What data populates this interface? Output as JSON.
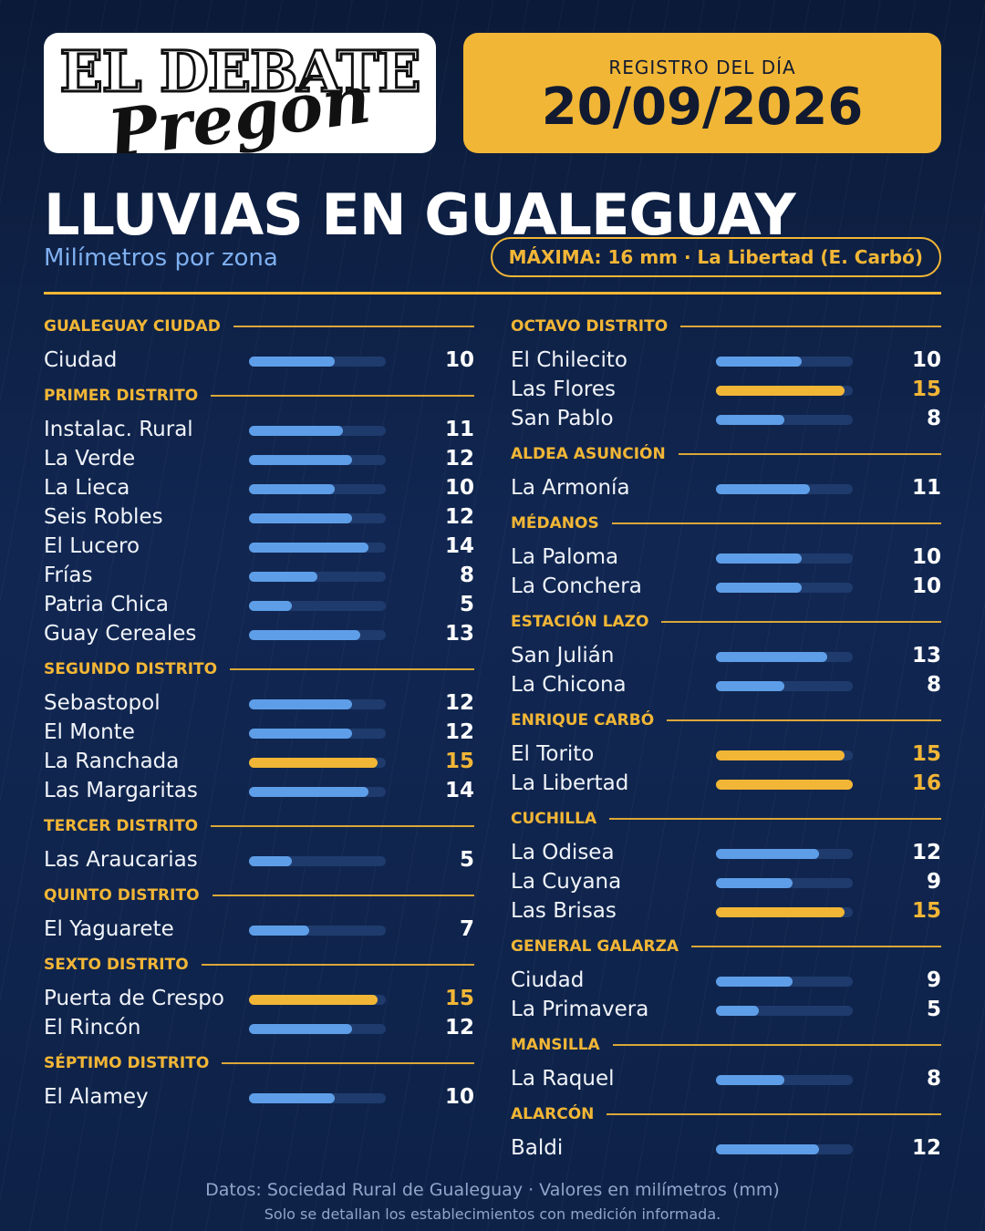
{
  "header": {
    "logo_top": "EL DEBATE",
    "logo_script": "Pregón",
    "date_label": "REGISTRO DEL DÍA",
    "date_value": "20/09/2026"
  },
  "title": "LLUVIAS EN GUALEGUAY",
  "subtitle": "Milímetros por zona",
  "max_badge": "MÁXIMA: 16 mm · La Libertad (E. Carbó)",
  "colors": {
    "accent": "#f2b636",
    "bar": "#5e9ee8",
    "track": "#1f3b6d",
    "background": "#0e2248"
  },
  "chart_data": {
    "type": "bar",
    "orientation": "horizontal",
    "units": "mm",
    "xlim": [
      0,
      16
    ],
    "highlight_threshold": 15,
    "groups": [
      {
        "name": "GUALEGUAY CIUDAD",
        "column": "left",
        "items": [
          {
            "label": "Ciudad",
            "value": 10
          }
        ]
      },
      {
        "name": "PRIMER DISTRITO",
        "column": "left",
        "items": [
          {
            "label": "Instalac. Rural",
            "value": 11
          },
          {
            "label": "La Verde",
            "value": 12
          },
          {
            "label": "La Lieca",
            "value": 10
          },
          {
            "label": "Seis Robles",
            "value": 12
          },
          {
            "label": "El Lucero",
            "value": 14
          },
          {
            "label": "Frías",
            "value": 8
          },
          {
            "label": "Patria Chica",
            "value": 5
          },
          {
            "label": "Guay Cereales",
            "value": 13
          }
        ]
      },
      {
        "name": "SEGUNDO DISTRITO",
        "column": "left",
        "items": [
          {
            "label": "Sebastopol",
            "value": 12
          },
          {
            "label": "El Monte",
            "value": 12
          },
          {
            "label": "La Ranchada",
            "value": 15
          },
          {
            "label": "Las Margaritas",
            "value": 14
          }
        ]
      },
      {
        "name": "TERCER DISTRITO",
        "column": "left",
        "items": [
          {
            "label": "Las Araucarias",
            "value": 5
          }
        ]
      },
      {
        "name": "QUINTO DISTRITO",
        "column": "left",
        "items": [
          {
            "label": "El Yaguarete",
            "value": 7
          }
        ]
      },
      {
        "name": "SEXTO DISTRITO",
        "column": "left",
        "items": [
          {
            "label": "Puerta de Crespo",
            "value": 15
          },
          {
            "label": "El Rincón",
            "value": 12
          }
        ]
      },
      {
        "name": "SÉPTIMO DISTRITO",
        "column": "left",
        "items": [
          {
            "label": "El Alamey",
            "value": 10
          }
        ]
      },
      {
        "name": "OCTAVO DISTRITO",
        "column": "right",
        "items": [
          {
            "label": "El Chilecito",
            "value": 10
          },
          {
            "label": "Las Flores",
            "value": 15
          },
          {
            "label": "San Pablo",
            "value": 8
          }
        ]
      },
      {
        "name": "ALDEA ASUNCIÓN",
        "column": "right",
        "items": [
          {
            "label": "La Armonía",
            "value": 11
          }
        ]
      },
      {
        "name": "MÉDANOS",
        "column": "right",
        "items": [
          {
            "label": "La Paloma",
            "value": 10
          },
          {
            "label": "La Conchera",
            "value": 10
          }
        ]
      },
      {
        "name": "ESTACIÓN LAZO",
        "column": "right",
        "items": [
          {
            "label": "San Julián",
            "value": 13
          },
          {
            "label": "La Chicona",
            "value": 8
          }
        ]
      },
      {
        "name": "ENRIQUE CARBÓ",
        "column": "right",
        "items": [
          {
            "label": "El Torito",
            "value": 15
          },
          {
            "label": "La Libertad",
            "value": 16
          }
        ]
      },
      {
        "name": "CUCHILLA",
        "column": "right",
        "items": [
          {
            "label": "La Odisea",
            "value": 12
          },
          {
            "label": "La Cuyana",
            "value": 9
          },
          {
            "label": "Las Brisas",
            "value": 15
          }
        ]
      },
      {
        "name": "GENERAL GALARZA",
        "column": "right",
        "items": [
          {
            "label": "Ciudad",
            "value": 9
          },
          {
            "label": "La Primavera",
            "value": 5
          }
        ]
      },
      {
        "name": "MANSILLA",
        "column": "right",
        "items": [
          {
            "label": "La Raquel",
            "value": 8
          }
        ]
      },
      {
        "name": "ALARCÓN",
        "column": "right",
        "items": [
          {
            "label": "Baldi",
            "value": 12
          }
        ]
      }
    ]
  },
  "footer": {
    "source": "Datos: Sociedad Rural de Gualeguay  ·  Valores en milímetros (mm)",
    "note": "Solo se detallan los establecimientos con medición informada."
  }
}
